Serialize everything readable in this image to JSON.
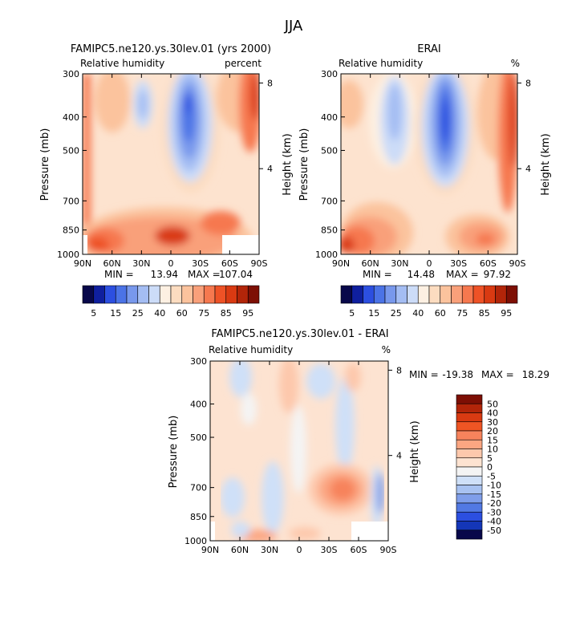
{
  "page_title": "JJA",
  "chart_data": [
    {
      "type": "heatmap",
      "title": "FAMIPC5.ne120.ys.30lev.01 (yrs 2000)",
      "subtitle_left": "Relative humidity",
      "subtitle_right": "percent",
      "ylabel": "Pressure (mb)",
      "ylabel_right": "Height (km)",
      "x_ticks": [
        "90N",
        "60N",
        "30N",
        "0",
        "30S",
        "60S",
        "90S"
      ],
      "y_ticks": [
        "300",
        "400",
        "500",
        "700",
        "850",
        "1000"
      ],
      "y_ticks_right": [
        "8",
        "4"
      ],
      "min_label": "MIN =",
      "min_value": "13.94",
      "max_label": "MAX =",
      "max_value": "107.04",
      "colorbar_labels": [
        "5",
        "15",
        "25",
        "40",
        "60",
        "75",
        "85",
        "95"
      ]
    },
    {
      "type": "heatmap",
      "title": "ERAI",
      "subtitle_left": "Relative humidity",
      "subtitle_right": "%",
      "ylabel": "Pressure (mb)",
      "ylabel_right": "Height (km)",
      "x_ticks": [
        "90N",
        "60N",
        "30N",
        "0",
        "30S",
        "60S",
        "90S"
      ],
      "y_ticks": [
        "300",
        "400",
        "500",
        "700",
        "850",
        "1000"
      ],
      "y_ticks_right": [
        "8",
        "4"
      ],
      "min_label": "MIN =",
      "min_value": "14.48",
      "max_label": "MAX =",
      "max_value": "97.92",
      "colorbar_labels": [
        "5",
        "15",
        "25",
        "40",
        "60",
        "75",
        "85",
        "95"
      ]
    },
    {
      "type": "heatmap",
      "title": "FAMIPC5.ne120.ys.30lev.01 - ERAI",
      "subtitle_left": "Relative humidity",
      "subtitle_right": "%",
      "ylabel": "Pressure (mb)",
      "ylabel_right": "Height (km)",
      "x_ticks": [
        "90N",
        "60N",
        "30N",
        "0",
        "30S",
        "60S",
        "90S"
      ],
      "y_ticks": [
        "300",
        "400",
        "500",
        "700",
        "850",
        "1000"
      ],
      "y_ticks_right": [
        "8",
        "4"
      ],
      "min_label": "MIN =",
      "min_value": "-19.38",
      "max_label": "MAX =",
      "max_value": "18.29",
      "colorbar_labels": [
        "50",
        "40",
        "30",
        "20",
        "15",
        "10",
        "5",
        "0",
        "-5",
        "-10",
        "-15",
        "-20",
        "-30",
        "-40",
        "-50"
      ]
    }
  ],
  "colors": {
    "abs_scale": [
      "#08084a",
      "#0f1f9e",
      "#2c4fe0",
      "#4b73e6",
      "#7898ec",
      "#a4bdf3",
      "#ccdcf8",
      "#fdf0e2",
      "#fcdcc0",
      "#fbc39d",
      "#f9a07a",
      "#f6784f",
      "#ee5226",
      "#d93a12",
      "#b22509",
      "#7d0f04"
    ],
    "diff_scale": [
      "#7d0f04",
      "#b22509",
      "#d93a12",
      "#ef5524",
      "#f7835c",
      "#fba682",
      "#fdc8ac",
      "#fde3d1",
      "#f4f4f4",
      "#cfe0f8",
      "#a8c2f1",
      "#7f9eea",
      "#5279e3",
      "#2c4fe0",
      "#1436b8",
      "#08084a"
    ]
  }
}
